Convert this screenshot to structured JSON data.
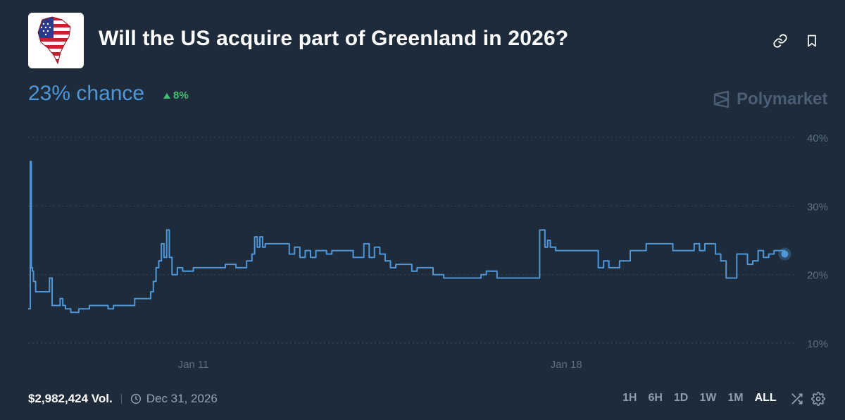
{
  "market": {
    "title": "Will the US acquire part of Greenland in 2026?",
    "chance": "23% chance",
    "change": "8%",
    "brand": "Polymarket",
    "thumbnail_icon": "greenland-flag-map-icon"
  },
  "header_icons": [
    "link-icon",
    "bookmark-icon"
  ],
  "footer": {
    "volume": "$2,982,424 Vol.",
    "end_date": "Dec 31, 2026",
    "ranges": [
      "1H",
      "6H",
      "1D",
      "1W",
      "1M",
      "ALL"
    ],
    "active_range": "ALL"
  },
  "colors": {
    "background": "#1d2b3a",
    "line": "#4f97d9",
    "up": "#43c06e",
    "muted": "#4b5e73"
  },
  "chart_data": {
    "type": "line",
    "ylim": [
      10,
      40
    ],
    "yticks": [
      10,
      20,
      30,
      40
    ],
    "ytick_labels": [
      "10%",
      "20%",
      "30%",
      "40%"
    ],
    "xticks": [
      11,
      18
    ],
    "xtick_labels": [
      "Jan 11",
      "Jan 18"
    ],
    "xlim": [
      7.9,
      22.2
    ],
    "grid": true,
    "series": [
      {
        "x": [
          7.9,
          7.94,
          7.96,
          7.98,
          8.0,
          8.04,
          8.06,
          8.1,
          8.25,
          8.3,
          8.35,
          8.4,
          8.5,
          8.55,
          8.6,
          8.7,
          8.85,
          9.0,
          9.05,
          9.2,
          9.4,
          9.5,
          9.7,
          9.9,
          10.1,
          10.2,
          10.25,
          10.3,
          10.35,
          10.4,
          10.45,
          10.5,
          10.55,
          10.6,
          10.7,
          10.8,
          11.0,
          11.2,
          11.4,
          11.6,
          11.8,
          12.0,
          12.1,
          12.15,
          12.2,
          12.25,
          12.3,
          12.35,
          12.4,
          12.5,
          12.8,
          12.9,
          13.0,
          13.1,
          13.2,
          13.3,
          13.5,
          13.6,
          13.8,
          14.0,
          14.2,
          14.3,
          14.4,
          14.5,
          14.6,
          14.7,
          14.8,
          15.0,
          15.1,
          15.2,
          15.4,
          15.5,
          15.6,
          15.7,
          16.0,
          16.2,
          16.4,
          16.5,
          16.6,
          16.7,
          16.8,
          17.0,
          17.5,
          17.6,
          17.65,
          17.7,
          17.8,
          18.0,
          18.5,
          18.6,
          18.7,
          18.8,
          18.9,
          19.0,
          19.2,
          19.5,
          20.0,
          20.3,
          20.4,
          20.5,
          20.6,
          20.7,
          20.8,
          20.9,
          21.0,
          21.2,
          21.4,
          21.45,
          21.5,
          21.6,
          21.7,
          21.8,
          21.9,
          22.0,
          22.1
        ],
        "y": [
          15,
          36.5,
          21,
          20.5,
          19,
          17.5,
          17.5,
          17.5,
          17.5,
          19.5,
          15.5,
          15.5,
          16.5,
          15.5,
          15,
          14.5,
          15,
          15,
          15.5,
          15.5,
          15,
          15.5,
          15.5,
          16.5,
          16.5,
          17.5,
          19,
          21,
          22,
          24.5,
          22.5,
          26.5,
          22.5,
          20,
          21,
          20.5,
          21,
          21,
          21,
          21.5,
          21,
          22,
          23,
          25.5,
          24,
          25.5,
          24,
          24.5,
          24.5,
          24.5,
          23,
          24,
          22.5,
          23.5,
          22.5,
          23.5,
          23,
          23.5,
          23.5,
          22.5,
          24.5,
          22.5,
          24,
          23,
          22,
          21,
          21.5,
          21.5,
          20.5,
          21,
          21,
          20,
          20,
          19.5,
          19.5,
          19.5,
          20,
          20.5,
          20.5,
          19.5,
          19.5,
          19.5,
          26.5,
          24,
          25,
          24,
          23.5,
          23.5,
          23.5,
          21,
          22,
          21,
          21,
          22,
          23.5,
          24.5,
          23.5,
          23.5,
          24.5,
          23.5,
          24.5,
          24.5,
          23,
          22,
          19.5,
          23,
          21.5,
          21.5,
          22,
          23.5,
          22.5,
          23,
          23.5,
          23.5,
          23
        ]
      }
    ]
  }
}
